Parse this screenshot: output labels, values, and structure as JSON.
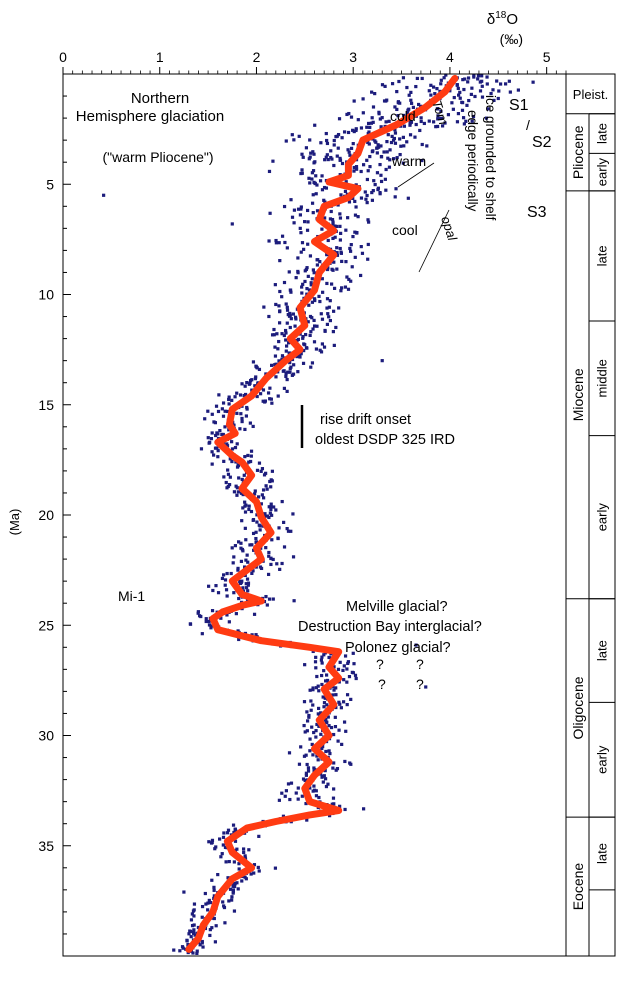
{
  "chart_data": {
    "type": "scatter",
    "x_axis_label_main": "δ",
    "x_axis_label_sup": "18",
    "x_axis_label_tail": "O",
    "x_axis_unit": "(‰)",
    "y_axis_label": "(Ma)",
    "xlim": [
      0,
      5.2
    ],
    "ylim": [
      0,
      40
    ],
    "x_ticks": [
      "0",
      "1",
      "2",
      "3",
      "4",
      "5"
    ],
    "y_ticks": [
      "5",
      "10",
      "15",
      "20",
      "25",
      "30",
      "35"
    ],
    "scatter_color": "#1c1c7c",
    "curve_color": "#ff3b12",
    "smoothed_curve": [
      [
        4.05,
        0.2
      ],
      [
        3.95,
        0.8
      ],
      [
        3.75,
        1.5
      ],
      [
        3.45,
        2.3
      ],
      [
        3.1,
        3.0
      ],
      [
        3.05,
        3.6
      ],
      [
        2.95,
        4.1
      ],
      [
        2.95,
        4.6
      ],
      [
        2.75,
        4.9
      ],
      [
        3.05,
        5.2
      ],
      [
        2.95,
        5.6
      ],
      [
        2.7,
        6.0
      ],
      [
        2.65,
        6.6
      ],
      [
        2.8,
        7.1
      ],
      [
        2.6,
        7.6
      ],
      [
        2.8,
        8.2
      ],
      [
        2.65,
        9.0
      ],
      [
        2.6,
        9.8
      ],
      [
        2.45,
        10.6
      ],
      [
        2.5,
        11.4
      ],
      [
        2.35,
        12.0
      ],
      [
        2.45,
        12.5
      ],
      [
        2.3,
        13.0
      ],
      [
        2.1,
        13.8
      ],
      [
        1.95,
        14.6
      ],
      [
        1.75,
        15.2
      ],
      [
        1.72,
        15.9
      ],
      [
        1.78,
        16.3
      ],
      [
        1.6,
        16.7
      ],
      [
        1.75,
        17.3
      ],
      [
        1.85,
        17.6
      ],
      [
        1.95,
        18.2
      ],
      [
        1.85,
        18.8
      ],
      [
        2.0,
        19.4
      ],
      [
        2.05,
        20.1
      ],
      [
        2.15,
        20.8
      ],
      [
        2.0,
        21.5
      ],
      [
        2.05,
        22.0
      ],
      [
        1.9,
        22.5
      ],
      [
        1.75,
        23.0
      ],
      [
        1.85,
        23.6
      ],
      [
        2.05,
        23.9
      ],
      [
        1.85,
        24.1
      ],
      [
        1.65,
        24.4
      ],
      [
        1.55,
        24.7
      ],
      [
        1.6,
        25.2
      ],
      [
        2.05,
        25.7
      ],
      [
        2.55,
        26.0
      ],
      [
        2.85,
        26.2
      ],
      [
        2.75,
        26.9
      ],
      [
        2.85,
        27.4
      ],
      [
        2.7,
        27.9
      ],
      [
        2.8,
        28.6
      ],
      [
        2.65,
        29.3
      ],
      [
        2.75,
        30.0
      ],
      [
        2.6,
        30.6
      ],
      [
        2.75,
        31.2
      ],
      [
        2.6,
        31.8
      ],
      [
        2.5,
        32.4
      ],
      [
        2.55,
        33.0
      ],
      [
        2.85,
        33.4
      ],
      [
        2.55,
        33.6
      ],
      [
        2.2,
        33.9
      ],
      [
        1.9,
        34.2
      ],
      [
        1.7,
        34.8
      ],
      [
        1.75,
        35.3
      ],
      [
        1.95,
        36.0
      ],
      [
        1.75,
        36.5
      ],
      [
        1.6,
        37.3
      ],
      [
        1.55,
        38.0
      ],
      [
        1.45,
        38.6
      ],
      [
        1.4,
        39.2
      ],
      [
        1.3,
        39.7
      ]
    ],
    "scatter_spread": [
      [
        0.5,
        0.9
      ],
      [
        2,
        0.85
      ],
      [
        4,
        0.75
      ],
      [
        6,
        0.6
      ],
      [
        10,
        0.45
      ],
      [
        14,
        0.4
      ],
      [
        18,
        0.3
      ],
      [
        23,
        0.35
      ],
      [
        26,
        0.3
      ],
      [
        30,
        0.3
      ],
      [
        33,
        0.35
      ],
      [
        36,
        0.25
      ],
      [
        39.5,
        0.2
      ]
    ],
    "outliers": [
      [
        0.42,
        5.5
      ],
      [
        1.75,
        6.8
      ],
      [
        3.15,
        8.4
      ],
      [
        3.3,
        13.0
      ],
      [
        3.75,
        27.8
      ],
      [
        3.65,
        25.9
      ],
      [
        1.25,
        37.1
      ]
    ],
    "annotations": {
      "northern_1": "Northern",
      "northern_2": "Hemisphere glaciation",
      "warm_pliocene": "(\"warm Pliocene\")",
      "cold": "cold",
      "warm": "warm",
      "cool": "cool",
      "tom": "Tom",
      "opal": "opal",
      "ice_1": "ice grounded to shelf",
      "ice_2": "edge periodically",
      "s1": "S1",
      "slash": "/",
      "s2": "S2",
      "s3": "S3",
      "rise_drift": "rise drift onset",
      "oldest_dsdp": "oldest DSDP 325 IRD",
      "mi1": "Mi-1",
      "melville": "Melville glacial?",
      "destruction": "Destruction Bay interglacial?",
      "polonez": "Polonez glacial?",
      "q": "?"
    },
    "time_scale": {
      "epochs": [
        {
          "name": "Pleist.",
          "top": 0,
          "bottom": 1.8
        },
        {
          "name": "Pliocene",
          "top": 1.8,
          "bottom": 5.3
        },
        {
          "name": "Miocene",
          "top": 5.3,
          "bottom": 23.8
        },
        {
          "name": "Oligocene",
          "top": 23.8,
          "bottom": 33.7
        },
        {
          "name": "Eocene",
          "top": 33.7,
          "bottom": 40
        }
      ],
      "subdivisions": [
        {
          "name": "late",
          "top": 1.8,
          "bottom": 3.6
        },
        {
          "name": "early",
          "top": 3.6,
          "bottom": 5.3
        },
        {
          "name": "late",
          "top": 5.3,
          "bottom": 11.2
        },
        {
          "name": "middle",
          "top": 11.2,
          "bottom": 16.4
        },
        {
          "name": "early",
          "top": 16.4,
          "bottom": 23.8
        },
        {
          "name": "late",
          "top": 23.8,
          "bottom": 28.5
        },
        {
          "name": "early",
          "top": 28.5,
          "bottom": 33.7
        },
        {
          "name": "late",
          "top": 33.7,
          "bottom": 37.0
        },
        {
          "name": "",
          "top": 37.0,
          "bottom": 40
        }
      ]
    }
  }
}
